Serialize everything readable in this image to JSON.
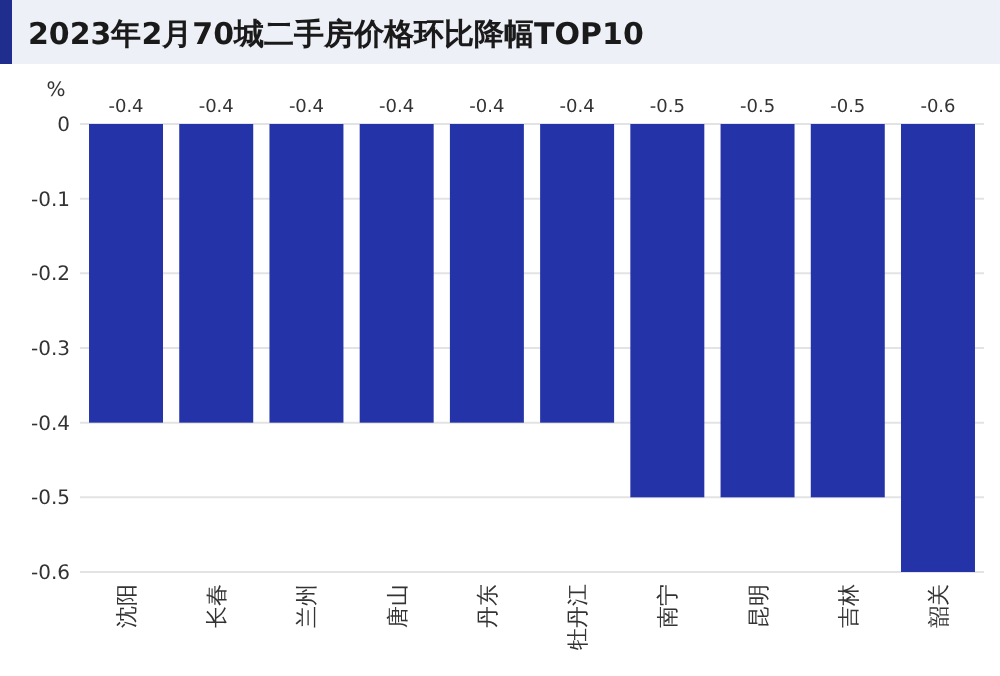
{
  "chart_data": {
    "type": "bar",
    "title": "2023年2月70城二手房价格环比降幅TOP10",
    "ylabel": "%",
    "categories": [
      "沈阳",
      "长春",
      "兰州",
      "唐山",
      "丹东",
      "牡丹江",
      "南宁",
      "昆明",
      "吉林",
      "韶关"
    ],
    "values": [
      -0.4,
      -0.4,
      -0.4,
      -0.4,
      -0.4,
      -0.4,
      -0.5,
      -0.5,
      -0.5,
      -0.6
    ],
    "color": "#2433a8",
    "ylim": [
      -0.6,
      0
    ],
    "yticks": [
      0,
      -0.1,
      -0.2,
      -0.3,
      -0.4,
      -0.5,
      -0.6
    ],
    "grid": "y",
    "data_labels": true
  }
}
